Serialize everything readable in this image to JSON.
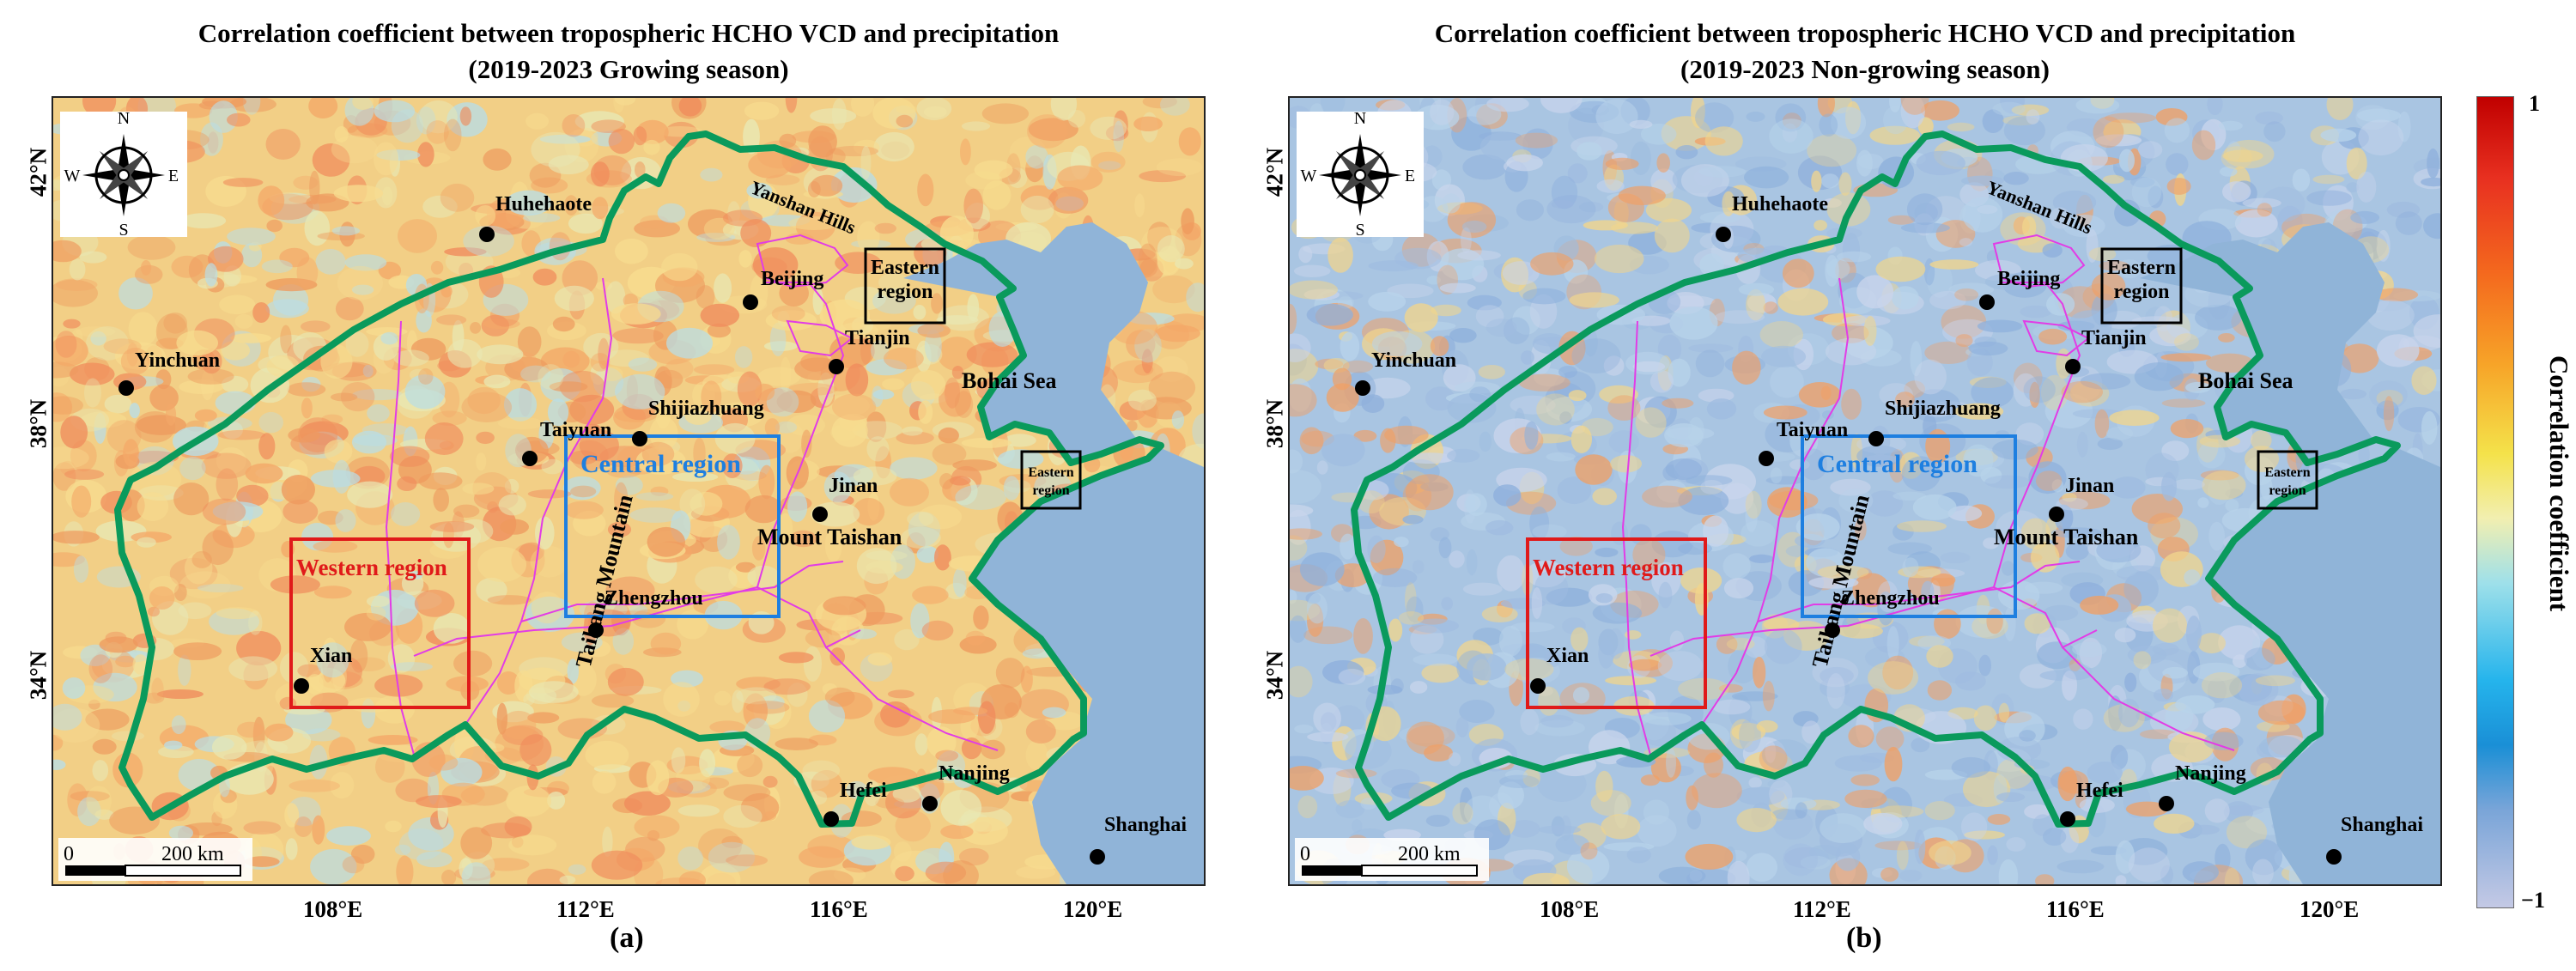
{
  "panels": [
    {
      "id": "a",
      "title_line1": "Correlation coefficient between tropospheric HCHO VCD and precipitation",
      "title_line2": "(2019-2023 Growing season)",
      "label": "(a)",
      "background": "#f2cf86",
      "texture_colors": [
        "#f4a868",
        "#ee9a5e",
        "#f7dc8f",
        "#b9dde6",
        "#e8e8b4",
        "#f08c5c"
      ]
    },
    {
      "id": "b",
      "title_line1": "Correlation coefficient between tropospheric HCHO VCD and precipitation",
      "title_line2": "(2019-2023 Non-growing season)",
      "label": "(b)",
      "background": "#a9c5e2",
      "texture_colors": [
        "#9fbce0",
        "#b8d3ea",
        "#8eb0dc",
        "#f1d58c",
        "#c9d5ec",
        "#f0a066"
      ]
    }
  ],
  "axes": {
    "x_ticks": [
      "108°E",
      "112°E",
      "116°E",
      "120°E"
    ],
    "y_ticks": [
      "42°N",
      "38°N",
      "34°N"
    ]
  },
  "map_labels": {
    "cities": [
      "Huhehaote",
      "Beijing",
      "Tianjin",
      "Yinchuan",
      "Taiyuan",
      "Shijiazhuang",
      "Jinan",
      "Zhengzhou",
      "Xian",
      "Hefei",
      "Nanjing",
      "Shanghai"
    ],
    "features": {
      "yanshan": "Yanshan Hills",
      "bohai": "Bohai Sea",
      "taishan": "Mount Taishan",
      "taihang": "Taihang Mountain"
    },
    "regions": {
      "central": "Central region",
      "western": "Western region",
      "eastern_line1": "Eastern",
      "eastern_line2": "region"
    },
    "compass": {
      "n": "N",
      "s": "S",
      "e": "E",
      "w": "W"
    },
    "scale": {
      "zero": "0",
      "dist": "200 km"
    }
  },
  "colorbar": {
    "title": "Correlation coefficient",
    "max_label": "1",
    "min_label": "−1",
    "colors": [
      "#c00000",
      "#f46a1e",
      "#f4e24a",
      "#9ee0ea",
      "#1a8fd6",
      "#c4c9e5"
    ]
  },
  "colors": {
    "study_boundary": "#0a9a5c",
    "province_lines": "#e23ce6",
    "sea": "#90b4d8",
    "central_box": "#1e7fe0",
    "western_box": "#e01a1a",
    "eastern_box": "#000000"
  }
}
